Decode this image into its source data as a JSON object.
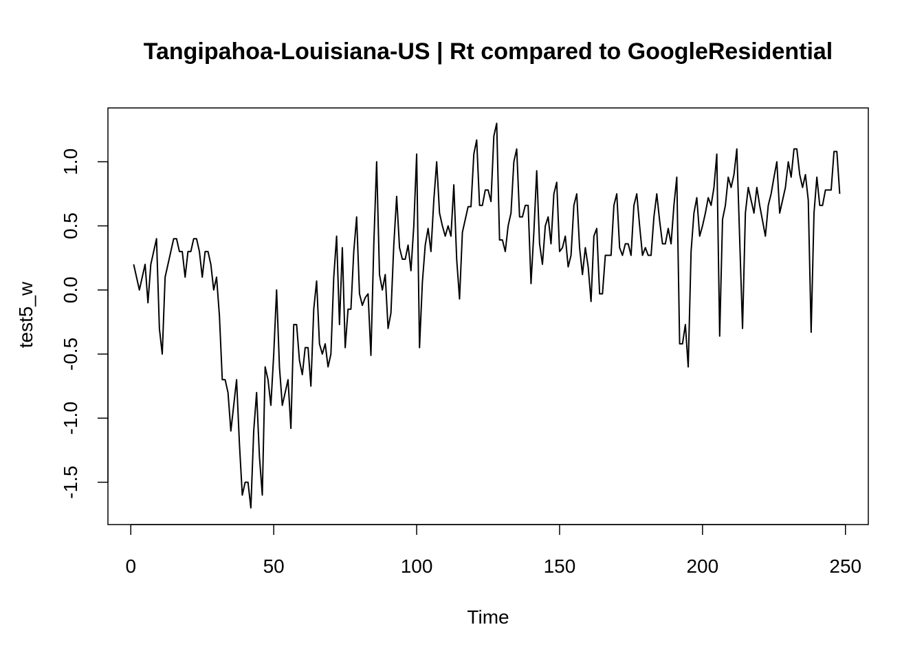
{
  "chart_data": {
    "type": "line",
    "title": "Tangipahoa-Louisiana-US | Rt compared to GoogleResidential",
    "xlabel": "Time",
    "ylabel": "test5_w",
    "xlim": [
      -8,
      258
    ],
    "ylim": [
      -1.83,
      1.42
    ],
    "x_ticks": [
      0,
      50,
      100,
      150,
      200,
      250
    ],
    "y_ticks": [
      -1.5,
      -1.0,
      -0.5,
      0.0,
      0.5,
      1.0
    ],
    "x_tick_labels": [
      "0",
      "50",
      "100",
      "150",
      "200",
      "250"
    ],
    "y_tick_labels": [
      "-1.5",
      "-1.0",
      "-0.5",
      "0.0",
      "0.5",
      "1.0"
    ],
    "grid": false,
    "line_color": "#000000",
    "series": [
      {
        "x_start": 1,
        "x_step": 1,
        "values": [
          0.2,
          0.1,
          0.0,
          0.1,
          0.2,
          -0.1,
          0.2,
          0.3,
          0.4,
          -0.3,
          -0.5,
          0.1,
          0.2,
          0.3,
          0.4,
          0.4,
          0.3,
          0.3,
          0.1,
          0.3,
          0.3,
          0.4,
          0.4,
          0.3,
          0.1,
          0.3,
          0.3,
          0.2,
          0.0,
          0.1,
          -0.2,
          -0.7,
          -0.7,
          -0.8,
          -1.1,
          -0.9,
          -0.7,
          -1.2,
          -1.6,
          -1.5,
          -1.5,
          -1.7,
          -1.1,
          -0.8,
          -1.3,
          -1.6,
          -0.6,
          -0.7,
          -0.9,
          -0.5,
          0.0,
          -0.6,
          -0.9,
          -0.8,
          -0.7,
          -1.08,
          -0.27,
          -0.27,
          -0.55,
          -0.66,
          -0.45,
          -0.45,
          -0.75,
          -0.15,
          0.07,
          -0.42,
          -0.5,
          -0.42,
          -0.6,
          -0.5,
          0.1,
          0.42,
          -0.27,
          0.33,
          -0.45,
          -0.15,
          -0.15,
          0.3,
          0.57,
          -0.03,
          -0.12,
          -0.06,
          -0.03,
          -0.51,
          0.35,
          1.0,
          0.12,
          0.0,
          0.12,
          -0.3,
          -0.18,
          0.35,
          0.73,
          0.33,
          0.24,
          0.24,
          0.35,
          0.15,
          0.5,
          1.06,
          -0.45,
          0.06,
          0.35,
          0.48,
          0.3,
          0.7,
          1.0,
          0.6,
          0.5,
          0.42,
          0.5,
          0.42,
          0.82,
          0.24,
          -0.07,
          0.45,
          0.55,
          0.65,
          0.65,
          1.06,
          1.17,
          0.66,
          0.66,
          0.78,
          0.78,
          0.69,
          1.2,
          1.3,
          0.39,
          0.39,
          0.3,
          0.5,
          0.6,
          1.0,
          1.1,
          0.57,
          0.57,
          0.66,
          0.66,
          0.05,
          0.45,
          0.93,
          0.36,
          0.2,
          0.5,
          0.57,
          0.36,
          0.75,
          0.84,
          0.3,
          0.33,
          0.42,
          0.18,
          0.27,
          0.66,
          0.75,
          0.33,
          0.12,
          0.33,
          0.18,
          -0.09,
          0.42,
          0.48,
          -0.03,
          -0.03,
          0.27,
          0.27,
          0.27,
          0.66,
          0.75,
          0.33,
          0.27,
          0.36,
          0.36,
          0.27,
          0.66,
          0.75,
          0.5,
          0.27,
          0.33,
          0.27,
          0.27,
          0.57,
          0.75,
          0.54,
          0.36,
          0.36,
          0.48,
          0.36,
          0.66,
          0.88,
          -0.42,
          -0.42,
          -0.27,
          -0.6,
          0.3,
          0.6,
          0.72,
          0.42,
          0.5,
          0.6,
          0.72,
          0.66,
          0.8,
          1.06,
          -0.36,
          0.55,
          0.66,
          0.88,
          0.8,
          0.9,
          1.1,
          0.4,
          -0.3,
          0.6,
          0.8,
          0.7,
          0.6,
          0.8,
          0.66,
          0.54,
          0.42,
          0.66,
          0.75,
          0.88,
          1.0,
          0.6,
          0.7,
          0.8,
          1.0,
          0.88,
          1.1,
          1.1,
          0.9,
          0.8,
          0.9,
          0.7,
          -0.33,
          0.6,
          0.88,
          0.66,
          0.66,
          0.78,
          0.78,
          0.78,
          1.08,
          1.08,
          0.75
        ]
      }
    ]
  }
}
